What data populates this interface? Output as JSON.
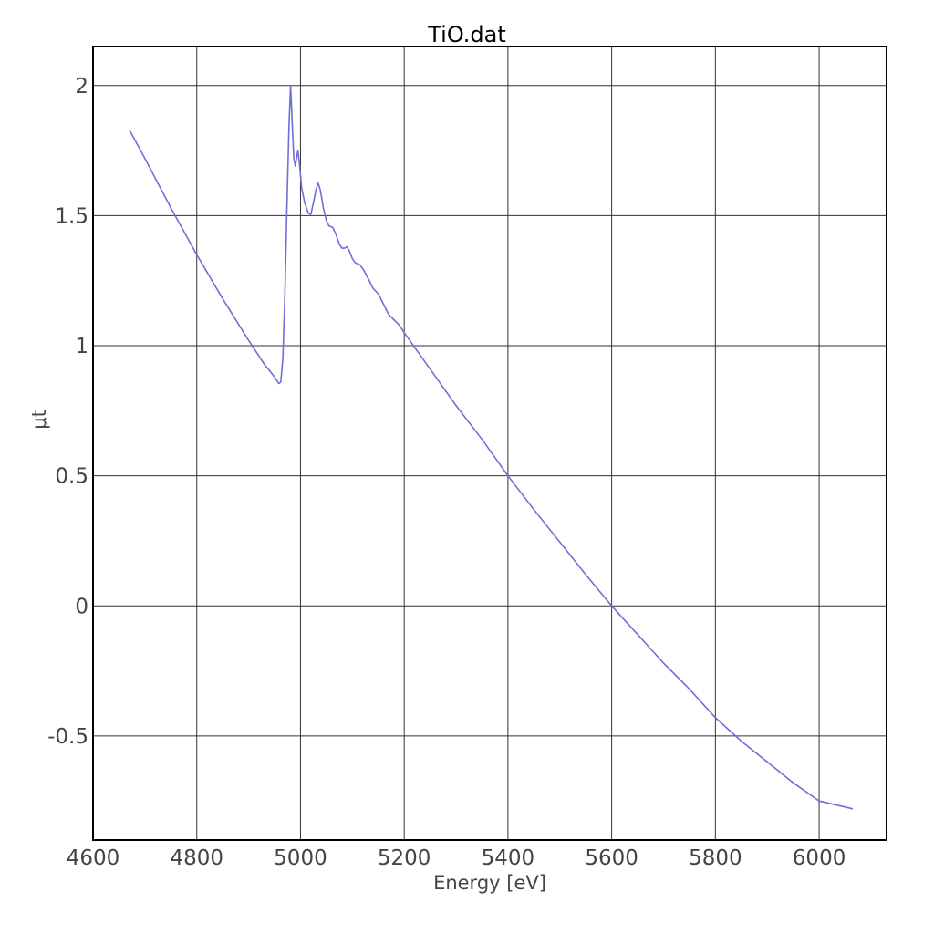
{
  "chart_data": {
    "type": "line",
    "title": "TiO.dat",
    "xlabel": "Energy [eV]",
    "ylabel": "μt",
    "xlim": [
      4600,
      6130
    ],
    "ylim": [
      -0.9,
      2.15
    ],
    "xticks": [
      4600,
      4800,
      5000,
      5200,
      5400,
      5600,
      5800,
      6000
    ],
    "xtick_labels": [
      "4600",
      "4800",
      "5000",
      "5200",
      "5400",
      "5600",
      "5800",
      "6000"
    ],
    "yticks": [
      -0.5,
      0,
      0.5,
      1,
      1.5,
      2
    ],
    "ytick_labels": [
      "-0.5",
      "0",
      "0.5",
      "1",
      "1.5",
      "2"
    ],
    "grid": true,
    "series_color": "#6f6fd8",
    "series": [
      {
        "points": [
          [
            4670,
            1.83
          ],
          [
            4700,
            1.72
          ],
          [
            4750,
            1.53
          ],
          [
            4800,
            1.35
          ],
          [
            4850,
            1.18
          ],
          [
            4900,
            1.02
          ],
          [
            4930,
            0.93
          ],
          [
            4950,
            0.88
          ],
          [
            4958,
            0.855
          ],
          [
            4962,
            0.86
          ],
          [
            4966,
            0.95
          ],
          [
            4970,
            1.2
          ],
          [
            4974,
            1.55
          ],
          [
            4978,
            1.85
          ],
          [
            4981,
            2.0
          ],
          [
            4984,
            1.85
          ],
          [
            4987,
            1.72
          ],
          [
            4990,
            1.69
          ],
          [
            4993,
            1.73
          ],
          [
            4995,
            1.75
          ],
          [
            4998,
            1.7
          ],
          [
            5002,
            1.61
          ],
          [
            5008,
            1.55
          ],
          [
            5015,
            1.51
          ],
          [
            5020,
            1.505
          ],
          [
            5025,
            1.55
          ],
          [
            5030,
            1.6
          ],
          [
            5034,
            1.625
          ],
          [
            5038,
            1.6
          ],
          [
            5044,
            1.53
          ],
          [
            5050,
            1.48
          ],
          [
            5055,
            1.46
          ],
          [
            5062,
            1.455
          ],
          [
            5068,
            1.43
          ],
          [
            5075,
            1.39
          ],
          [
            5080,
            1.375
          ],
          [
            5085,
            1.375
          ],
          [
            5090,
            1.38
          ],
          [
            5095,
            1.36
          ],
          [
            5100,
            1.335
          ],
          [
            5105,
            1.32
          ],
          [
            5115,
            1.31
          ],
          [
            5122,
            1.29
          ],
          [
            5130,
            1.26
          ],
          [
            5140,
            1.22
          ],
          [
            5150,
            1.2
          ],
          [
            5160,
            1.16
          ],
          [
            5170,
            1.12
          ],
          [
            5180,
            1.1
          ],
          [
            5190,
            1.08
          ],
          [
            5200,
            1.05
          ],
          [
            5250,
            0.91
          ],
          [
            5300,
            0.77
          ],
          [
            5350,
            0.64
          ],
          [
            5400,
            0.5
          ],
          [
            5450,
            0.37
          ],
          [
            5500,
            0.245
          ],
          [
            5550,
            0.12
          ],
          [
            5600,
            0.0
          ],
          [
            5650,
            -0.11
          ],
          [
            5700,
            -0.22
          ],
          [
            5750,
            -0.32
          ],
          [
            5800,
            -0.43
          ],
          [
            5850,
            -0.52
          ],
          [
            5900,
            -0.6
          ],
          [
            5950,
            -0.68
          ],
          [
            6000,
            -0.75
          ],
          [
            6065,
            -0.78
          ]
        ]
      }
    ]
  }
}
